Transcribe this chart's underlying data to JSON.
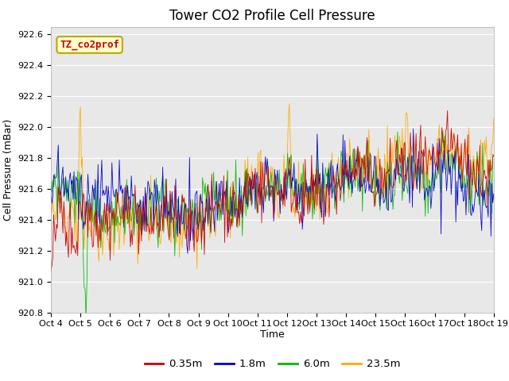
{
  "title": "Tower CO2 Profile Cell Pressure",
  "ylabel": "Cell Pressure (mBar)",
  "xlabel": "Time",
  "ylim": [
    920.8,
    922.65
  ],
  "yticks": [
    920.8,
    921.0,
    921.2,
    921.4,
    921.6,
    921.8,
    922.0,
    922.2,
    922.4,
    922.6
  ],
  "xtick_labels": [
    "Oct 4",
    "Oct 5",
    "Oct 6",
    "Oct 7",
    "Oct 8",
    "Oct 9",
    "Oct 10",
    "Oct 11",
    "Oct 12",
    "Oct 13",
    "Oct 14",
    "Oct 15",
    "Oct 16",
    "Oct 17",
    "Oct 18",
    "Oct 19"
  ],
  "colors": {
    "0.35m": "#cc0000",
    "1.8m": "#0000cc",
    "6.0m": "#00bb00",
    "23.5m": "#ffaa00"
  },
  "legend_label": "TZ_co2prof",
  "legend_box_color": "#ffffcc",
  "legend_box_edge": "#bbaa00",
  "legend_text_color": "#cc0000",
  "plot_bg": "#e8e8e8",
  "fig_bg": "#ffffff",
  "linewidth": 0.6,
  "n_points": 480,
  "base_pressure": 921.58,
  "seed": 42
}
